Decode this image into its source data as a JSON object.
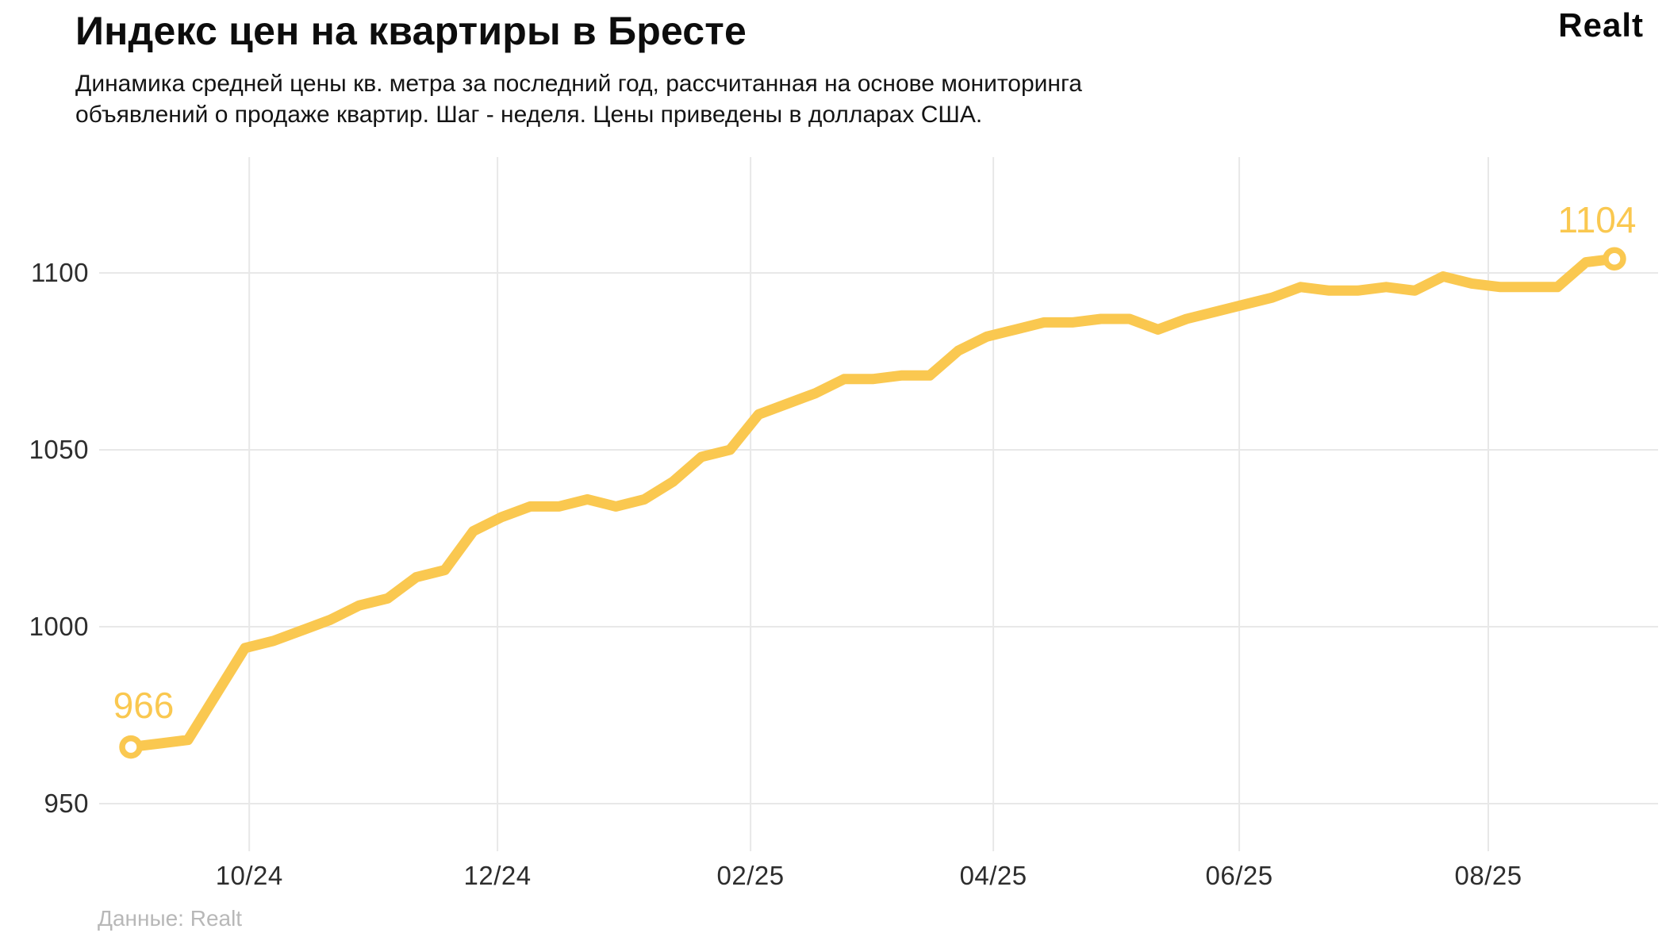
{
  "brand_logo": "Realt",
  "source_note": "Данные: Realt",
  "colors": {
    "line": "#FAC850",
    "grid": "#e8e8e8",
    "title_text": "#0d0d0d",
    "tick_text": "#2d2d2d",
    "muted_text": "#b8b8b8"
  },
  "chart_data": {
    "type": "line",
    "title": "Индекс цен на квартиры в Бресте",
    "subtitle_lines": [
      "Динамика средней цены кв. метра за последний год, рассчитанная на основе мониторинга",
      "объявлений о продаже квартир. Шаг - неделя. Цены приведены в долларах США."
    ],
    "subtitle": "Динамика средней цены кв. метра за последний год, рассчитанная на основе мониторинга объявлений о продаже квартир. Шаг - неделя. Цены приведены в долларах США.",
    "x_unit": "week",
    "step_note": "Шаг - неделя",
    "currency_note": "Цены приведены в долларах США",
    "grid": true,
    "legend": "none",
    "y_ticks": [
      950,
      1000,
      1050,
      1100
    ],
    "ylim": [
      936,
      1133
    ],
    "x_ticks": [
      {
        "label": "10/24",
        "week": 4.15
      },
      {
        "label": "12/24",
        "week": 12.85
      },
      {
        "label": "02/25",
        "week": 21.72
      },
      {
        "label": "04/25",
        "week": 30.23
      },
      {
        "label": "06/25",
        "week": 38.85
      },
      {
        "label": "08/25",
        "week": 47.58
      }
    ],
    "values": [
      966,
      967,
      968,
      981,
      994,
      996,
      999,
      1002,
      1006,
      1008,
      1014,
      1016,
      1027,
      1031,
      1034,
      1034,
      1036,
      1034,
      1036,
      1041,
      1048,
      1050,
      1060,
      1063,
      1066,
      1070,
      1070,
      1071,
      1071,
      1078,
      1082,
      1084,
      1086,
      1086,
      1087,
      1087,
      1084,
      1087,
      1089,
      1091,
      1093,
      1096,
      1095,
      1095,
      1096,
      1095,
      1099,
      1097,
      1096,
      1096,
      1096,
      1103,
      1104
    ],
    "first_point_label": "966",
    "last_point_label": "1104"
  }
}
